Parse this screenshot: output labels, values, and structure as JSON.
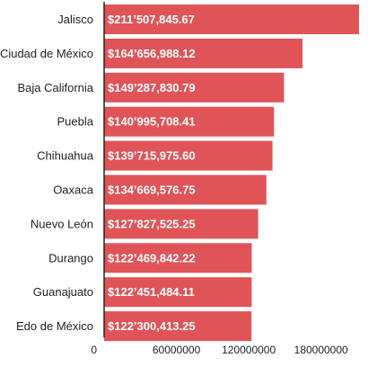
{
  "colors": {
    "bar": "#e05458",
    "axis": "#222222",
    "background": "#ffffff"
  },
  "chart_data": {
    "type": "bar",
    "orientation": "horizontal",
    "title": "",
    "xlabel": "",
    "ylabel": "",
    "categories": [
      "Jalisco",
      "Ciudad de México",
      "Baja California",
      "Puebla",
      "Chihuahua",
      "Oaxaca",
      "Nuevo León",
      "Durango",
      "Guanajuato",
      "Edo de México"
    ],
    "values": [
      211507845.67,
      164656988.12,
      149287830.79,
      140995708.41,
      139715975.6,
      134669576.75,
      127827525.25,
      122469842.22,
      122451484.11,
      122300413.25
    ],
    "value_labels": [
      "$211’507,845.67",
      "$164’656,988.12",
      "$149’287,830.79",
      "$140’995,708.41",
      "$139’715,975.60",
      "$134’669,576.75",
      "$127’827,525.25",
      "$122’469,842.22",
      "$122’451,484.11",
      "$122’300,413.25"
    ],
    "x_ticks": [
      0,
      60000000,
      120000000,
      180000000
    ],
    "x_tick_labels": [
      "0",
      "60000000",
      "120000000",
      "180000000"
    ],
    "xlim": [
      0,
      211507845.67
    ],
    "grid": false,
    "legend": "none"
  }
}
